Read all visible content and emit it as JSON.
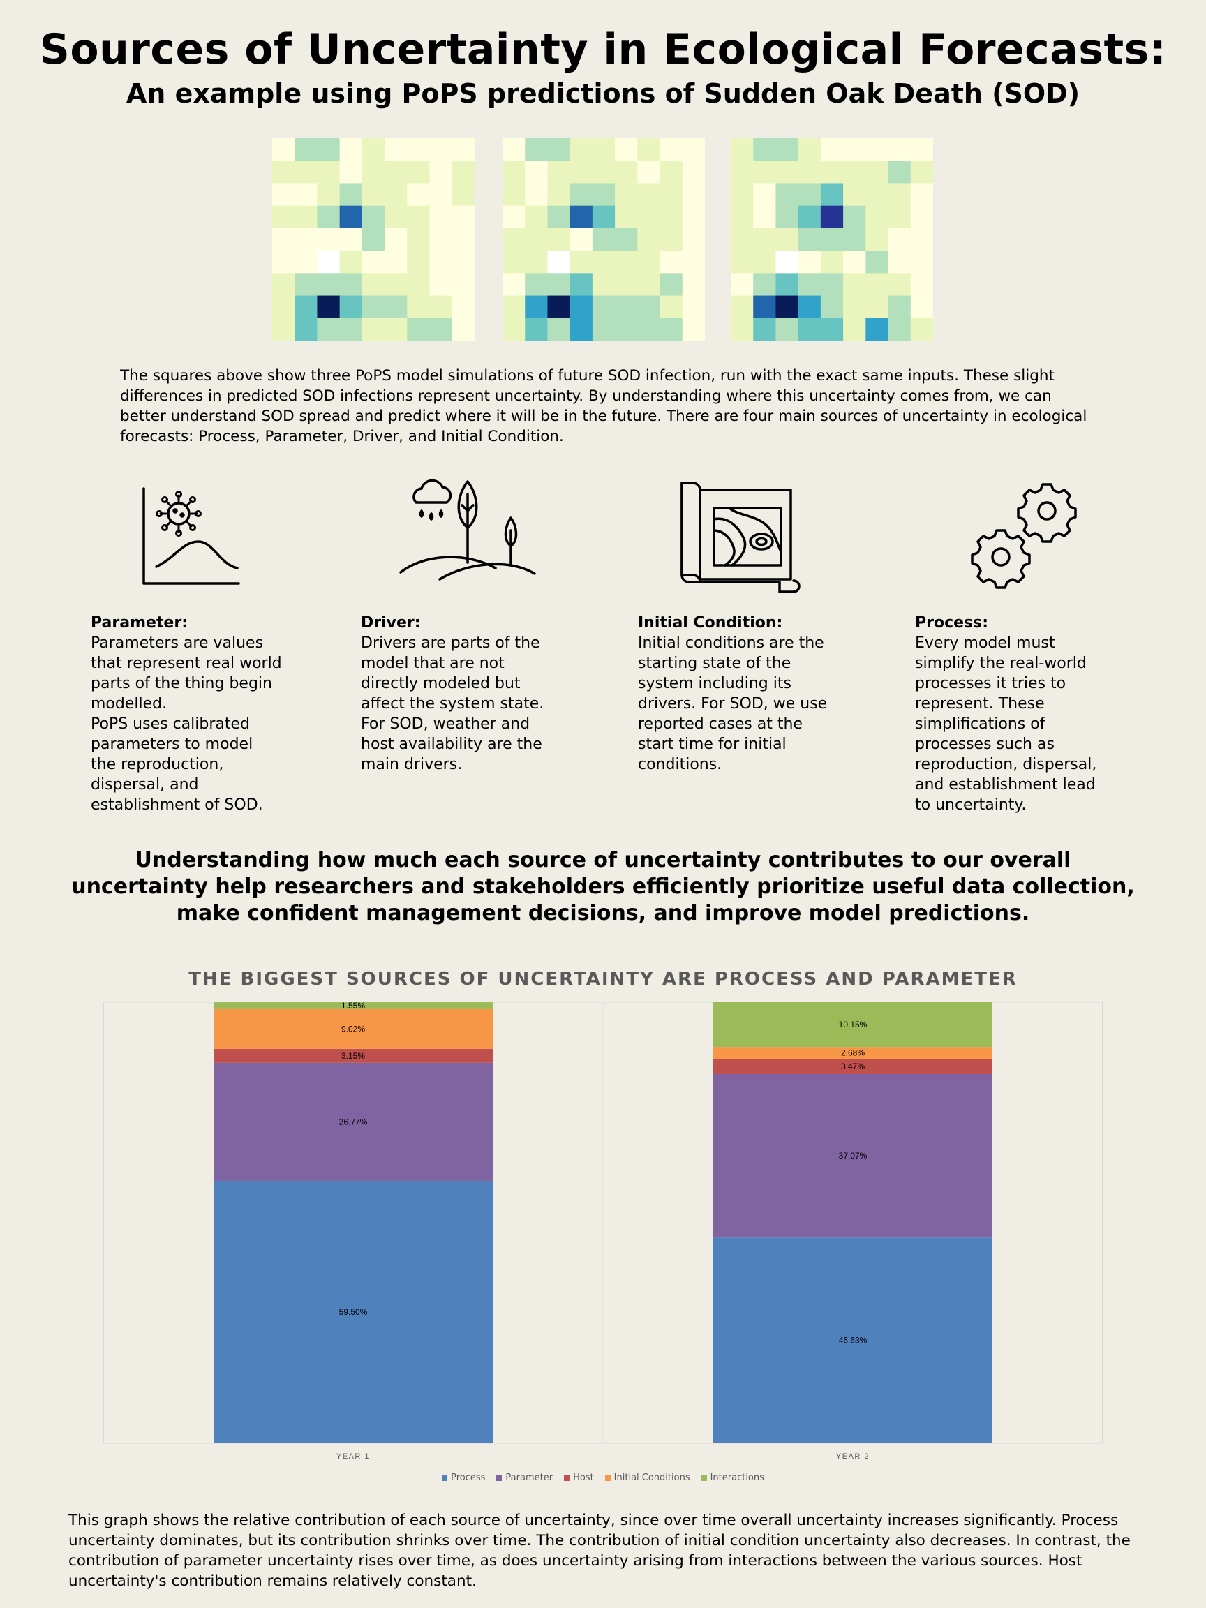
{
  "header": {
    "title": "Sources of Uncertainty in Ecological Forecasts:",
    "subtitle": "An example using PoPS predictions of Sudden Oak Death (SOD)"
  },
  "heatmaps": {
    "palette": [
      "#ffffff",
      "#fffee0",
      "#e9f5bd",
      "#b2e0bd",
      "#68c4c0",
      "#31a2ca",
      "#2166ac",
      "#253494",
      "#081d58"
    ],
    "grids": [
      [
        [
          1,
          3,
          3,
          1,
          2,
          1,
          1,
          1,
          1
        ],
        [
          2,
          2,
          2,
          1,
          2,
          2,
          2,
          1,
          2
        ],
        [
          1,
          1,
          2,
          3,
          2,
          2,
          1,
          1,
          2
        ],
        [
          2,
          2,
          3,
          6,
          3,
          2,
          2,
          1,
          1
        ],
        [
          1,
          1,
          1,
          1,
          3,
          1,
          2,
          1,
          1
        ],
        [
          1,
          1,
          0,
          2,
          1,
          1,
          2,
          1,
          1
        ],
        [
          2,
          3,
          3,
          3,
          2,
          2,
          2,
          1,
          1
        ],
        [
          2,
          4,
          8,
          4,
          3,
          3,
          2,
          2,
          1
        ],
        [
          2,
          4,
          3,
          3,
          2,
          2,
          3,
          3,
          1
        ]
      ],
      [
        [
          1,
          3,
          3,
          2,
          2,
          1,
          2,
          1,
          1
        ],
        [
          2,
          1,
          2,
          2,
          2,
          2,
          1,
          2,
          1
        ],
        [
          2,
          1,
          2,
          3,
          3,
          2,
          2,
          2,
          1
        ],
        [
          1,
          2,
          3,
          6,
          4,
          2,
          2,
          2,
          1
        ],
        [
          2,
          2,
          2,
          1,
          3,
          3,
          2,
          2,
          1
        ],
        [
          2,
          2,
          0,
          2,
          2,
          2,
          2,
          1,
          1
        ],
        [
          1,
          3,
          3,
          4,
          2,
          2,
          2,
          3,
          1
        ],
        [
          2,
          5,
          8,
          5,
          3,
          3,
          3,
          2,
          1
        ],
        [
          2,
          4,
          3,
          5,
          3,
          3,
          3,
          3,
          1
        ]
      ],
      [
        [
          2,
          3,
          3,
          2,
          1,
          1,
          1,
          1,
          1
        ],
        [
          2,
          2,
          2,
          2,
          2,
          2,
          2,
          3,
          2
        ],
        [
          2,
          1,
          3,
          3,
          4,
          2,
          2,
          2,
          1
        ],
        [
          2,
          1,
          3,
          4,
          7,
          3,
          2,
          2,
          1
        ],
        [
          2,
          2,
          2,
          3,
          3,
          3,
          2,
          1,
          1
        ],
        [
          2,
          2,
          0,
          1,
          2,
          1,
          3,
          1,
          1
        ],
        [
          1,
          3,
          4,
          3,
          3,
          2,
          2,
          2,
          1
        ],
        [
          2,
          6,
          8,
          5,
          3,
          2,
          2,
          3,
          1
        ],
        [
          2,
          4,
          3,
          4,
          4,
          2,
          5,
          3,
          2
        ]
      ]
    ]
  },
  "intro_text": "The squares above show three PoPS model simulations of future SOD infection, run with the exact same inputs. These slight differences in predicted SOD infections represent uncertainty. By understanding where this uncertainty comes from, we can better understand SOD spread and predict where it will be in the future. There are four main sources of uncertainty in ecological forecasts: Process, Parameter, Driver, and Initial Condition.",
  "sources": [
    {
      "icon": "parameter-chart-icon",
      "heading": "Parameter:",
      "body": "Parameters are values\nthat represent real world\nparts of the thing begin\nmodelled.\nPoPS uses calibrated\nparameters to model\nthe reproduction,\ndispersal, and\nestablishment of SOD."
    },
    {
      "icon": "driver-weather-tree-icon",
      "heading": "Driver:",
      "body": "Drivers are parts of the\nmodel that are not\ndirectly modeled but\naffect the system state.\nFor SOD, weather and\nhost availability are the\nmain drivers."
    },
    {
      "icon": "initial-condition-map-icon",
      "heading": "Initial Condition:",
      "body": "Initial conditions are the\nstarting state of the\nsystem including its\ndrivers. For SOD, we use\nreported cases at the\nstart time for initial\nconditions."
    },
    {
      "icon": "process-gears-icon",
      "heading": "Process:",
      "body": "Every model must\nsimplify the real-world\nprocesses it tries to\nrepresent. These\nsimplifications of\nprocesses such as\nreproduction, dispersal,\nand establishment lead\nto uncertainty."
    }
  ],
  "emphasis_text": "Understanding how much each source of uncertainty contributes to our overall uncertainty help researchers and stakeholders efficiently prioritize useful data collection, make confident management decisions, and improve model predictions.",
  "chart_data": {
    "type": "bar",
    "stacked": true,
    "title": "THE BIGGEST SOURCES OF UNCERTAINTY ARE PROCESS AND PARAMETER",
    "categories": [
      "YEAR 1",
      "YEAR 2"
    ],
    "ylim": [
      0,
      100
    ],
    "grid": false,
    "legend_position": "bottom",
    "series": [
      {
        "name": "Process",
        "color": "#4f81bd",
        "values": [
          59.5,
          46.63
        ],
        "labels": [
          "59.50%",
          "46.63%"
        ]
      },
      {
        "name": "Parameter",
        "color": "#8064a2",
        "values": [
          26.77,
          37.07
        ],
        "labels": [
          "26.77%",
          "37.07%"
        ]
      },
      {
        "name": "Host",
        "color": "#c0504d",
        "values": [
          3.15,
          3.47
        ],
        "labels": [
          "3.15%",
          "3.47%"
        ]
      },
      {
        "name": "Initial Conditions",
        "color": "#f79646",
        "values": [
          9.02,
          2.68
        ],
        "labels": [
          "9.02%",
          "2.68%"
        ]
      },
      {
        "name": "Interactions",
        "color": "#9bbb59",
        "values": [
          1.55,
          10.15
        ],
        "labels": [
          "1.55%",
          "10.15%"
        ]
      }
    ]
  },
  "footer_text": "This graph shows the relative contribution of each source of uncertainty, since over time overall uncertainty increases significantly. Process uncertainty dominates, but its contribution shrinks over time. The contribution of initial condition uncertainty also decreases. In contrast, the contribution of parameter uncertainty rises over time, as does uncertainty arising from interactions between the various sources. Host uncertainty's contribution remains relatively constant."
}
